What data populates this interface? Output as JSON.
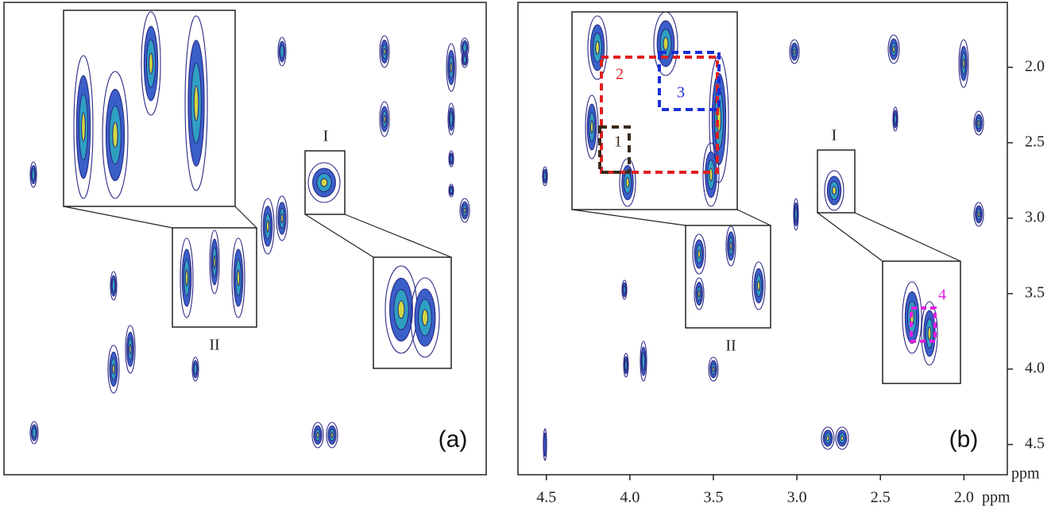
{
  "panels": [
    {
      "label": "(a)",
      "insets": [
        "I",
        "II"
      ]
    },
    {
      "label": "(b)",
      "insets": [
        "I",
        "II"
      ],
      "boxes": [
        "1",
        "2",
        "3",
        "4"
      ]
    }
  ],
  "axes": {
    "x": {
      "xlim": [
        4.67,
        1.74
      ],
      "ticks": [
        {
          "value": 4.5,
          "label": "4.5"
        },
        {
          "value": 4,
          "label": "4.0"
        },
        {
          "value": 3.5,
          "label": "3.5"
        },
        {
          "value": 3,
          "label": "3.0"
        },
        {
          "value": 2.5,
          "label": "2.5"
        },
        {
          "value": 2,
          "label": "2.0"
        }
      ],
      "unit": "ppm"
    },
    "y": {
      "ylim": [
        1.57,
        4.7
      ],
      "ticks": [
        {
          "value": 2,
          "label": "2.0"
        },
        {
          "value": 2.5,
          "label": "2.5"
        },
        {
          "value": 3,
          "label": "3.0"
        },
        {
          "value": 3.5,
          "label": "3.5"
        },
        {
          "value": 4,
          "label": "4.0"
        },
        {
          "value": 4.5,
          "label": "4.5"
        }
      ],
      "unit": "ppm"
    }
  }
}
